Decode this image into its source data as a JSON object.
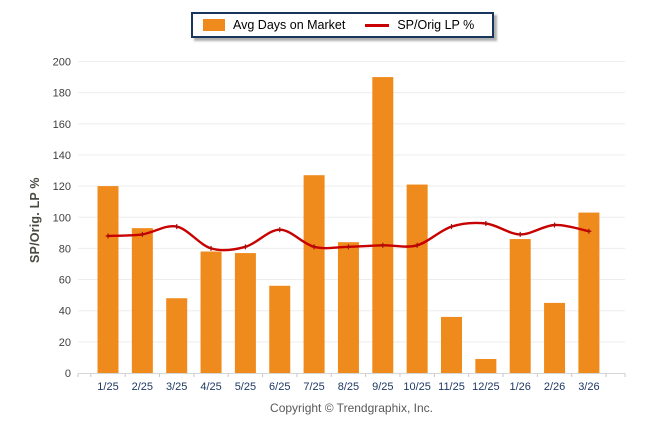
{
  "legend": {
    "items": [
      {
        "label": "Avg Days on Market",
        "swatch": "bar"
      },
      {
        "label": "SP/Orig LP %",
        "swatch": "line"
      }
    ]
  },
  "y_axis": {
    "title": "SP/Orig. LP %"
  },
  "footer": {
    "copyright": "Copyright © Trendgraphix, Inc."
  },
  "colors": {
    "bar": "#EF8B1C",
    "line": "#C80000",
    "line_marker": "#A50D0D",
    "legend_border": "#16365C",
    "x_label": "#1F3864",
    "y_label": "#3F3F3F",
    "grid": "#EDEDED",
    "axis_line": "#D6D6D6",
    "tick": "#C9C9C9",
    "copyright_text": "#595959"
  },
  "chart_data": {
    "type": "bar",
    "categories": [
      "1/25",
      "2/25",
      "3/25",
      "4/25",
      "5/25",
      "6/25",
      "7/25",
      "8/25",
      "9/25",
      "10/25",
      "11/25",
      "12/25",
      "1/26",
      "2/26",
      "3/26"
    ],
    "series": [
      {
        "name": "Avg Days on Market",
        "type": "bar",
        "color": "#EF8B1C",
        "values": [
          120,
          93,
          48,
          78,
          77,
          56,
          127,
          84,
          190,
          121,
          36,
          9,
          86,
          45,
          103
        ]
      },
      {
        "name": "SP/Orig LP %",
        "type": "line",
        "color": "#C80000",
        "values": [
          88,
          89,
          94,
          80,
          81,
          92,
          81,
          81,
          82,
          82,
          94,
          96,
          89,
          95,
          91
        ]
      }
    ],
    "title": "",
    "xlabel": "",
    "ylabel": "SP/Orig. LP %",
    "ylim": [
      0,
      200
    ],
    "ytick_step": 20,
    "grid": true,
    "legend_position": "top-center"
  }
}
